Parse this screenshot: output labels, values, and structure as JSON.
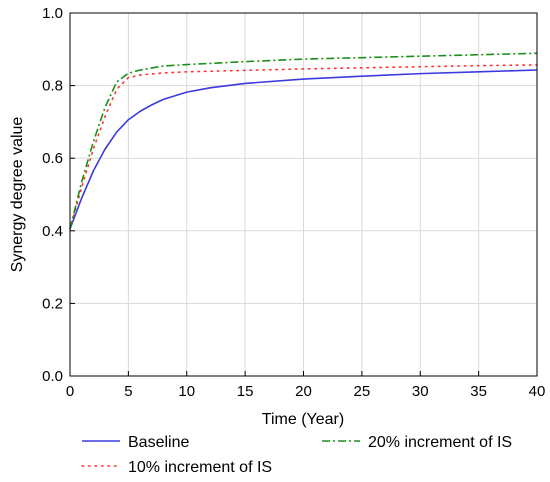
{
  "chart_data": {
    "type": "line",
    "xlabel": "Time (Year)",
    "ylabel": "Synergy degree value",
    "xlim": [
      0,
      40
    ],
    "ylim": [
      0,
      1.0
    ],
    "xticks": [
      "0",
      "5",
      "10",
      "15",
      "20",
      "25",
      "30",
      "35",
      "40"
    ],
    "yticks": [
      "0.0",
      "0.2",
      "0.4",
      "0.6",
      "0.8",
      "1.0"
    ],
    "grid": true,
    "legend_position": "bottom",
    "series": [
      {
        "name": "Baseline",
        "color": "#3a3ae0",
        "style": "solid",
        "x": [
          0,
          1,
          2,
          3,
          4,
          5,
          6,
          7,
          8,
          10,
          12,
          15,
          20,
          25,
          30,
          35,
          40
        ],
        "y": [
          0.405,
          0.49,
          0.565,
          0.625,
          0.672,
          0.706,
          0.729,
          0.747,
          0.762,
          0.782,
          0.794,
          0.806,
          0.818,
          0.826,
          0.833,
          0.838,
          0.843
        ]
      },
      {
        "name": "10% increment of IS",
        "color": "#ff3333",
        "style": "dotted",
        "x": [
          0,
          1,
          2,
          3,
          4,
          5,
          6,
          8,
          10,
          15,
          20,
          25,
          30,
          35,
          40
        ],
        "y": [
          0.405,
          0.52,
          0.625,
          0.715,
          0.79,
          0.822,
          0.829,
          0.835,
          0.838,
          0.842,
          0.846,
          0.849,
          0.852,
          0.855,
          0.857
        ]
      },
      {
        "name": "20% increment of IS",
        "color": "#1a8f1a",
        "style": "dashdot",
        "x": [
          0,
          1,
          2,
          3,
          4,
          5,
          6,
          8,
          10,
          15,
          20,
          25,
          30,
          35,
          40
        ],
        "y": [
          0.405,
          0.535,
          0.645,
          0.74,
          0.81,
          0.834,
          0.843,
          0.854,
          0.858,
          0.866,
          0.873,
          0.877,
          0.881,
          0.885,
          0.889
        ]
      }
    ]
  }
}
